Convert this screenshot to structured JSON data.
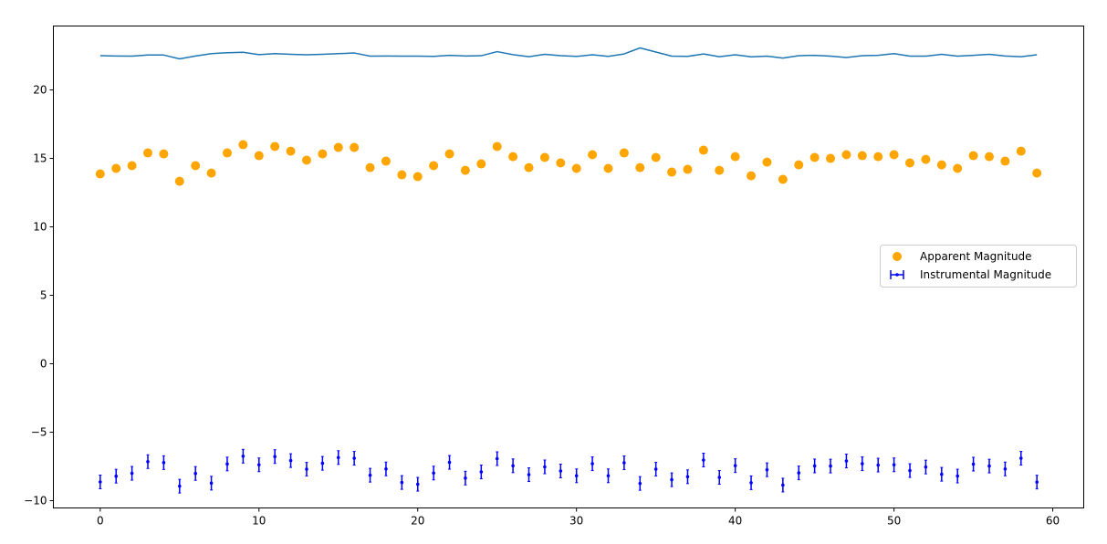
{
  "chart_data": {
    "type": "scatter",
    "title": "",
    "xlabel": "",
    "ylabel": "",
    "xlim": [
      -2.95,
      61.95
    ],
    "ylim": [
      -10.53,
      24.67
    ],
    "xticks": [
      0,
      10,
      20,
      30,
      40,
      50,
      60
    ],
    "yticks": [
      -10,
      -5,
      0,
      5,
      10,
      15,
      20
    ],
    "xtick_labels": [
      "0",
      "10",
      "20",
      "30",
      "40",
      "50",
      "60"
    ],
    "ytick_labels": [
      "−10",
      "−5",
      "0",
      "5",
      "10",
      "15",
      "20"
    ],
    "grid": false,
    "legend_placement": "center-right",
    "series": [
      {
        "kind": "line",
        "color": "#1f77b4",
        "values": [
          22.5,
          22.48,
          22.47,
          22.55,
          22.55,
          22.27,
          22.48,
          22.65,
          22.72,
          22.75,
          22.58,
          22.65,
          22.6,
          22.57,
          22.6,
          22.65,
          22.7,
          22.47,
          22.48,
          22.47,
          22.47,
          22.45,
          22.53,
          22.48,
          22.5,
          22.8,
          22.58,
          22.43,
          22.6,
          22.5,
          22.45,
          22.57,
          22.45,
          22.63,
          23.07,
          22.77,
          22.47,
          22.45,
          22.63,
          22.43,
          22.57,
          22.42,
          22.47,
          22.33,
          22.5,
          22.53,
          22.47,
          22.37,
          22.5,
          22.53,
          22.65,
          22.47,
          22.47,
          22.6,
          22.47,
          22.53,
          22.6,
          22.48,
          22.43,
          22.57
        ]
      },
      {
        "kind": "scatter",
        "name": "Apparent Magnitude",
        "color": "#ffa500",
        "values": [
          13.87,
          14.27,
          14.47,
          15.4,
          15.33,
          13.33,
          14.47,
          13.93,
          15.4,
          16.0,
          15.2,
          15.87,
          15.53,
          14.87,
          15.33,
          15.8,
          15.8,
          14.33,
          14.8,
          13.8,
          13.67,
          14.47,
          15.33,
          14.13,
          14.6,
          15.87,
          15.13,
          14.33,
          15.07,
          14.67,
          14.27,
          15.27,
          14.27,
          15.4,
          14.33,
          15.07,
          14.0,
          14.2,
          15.6,
          14.13,
          15.13,
          13.73,
          14.73,
          13.47,
          14.53,
          15.07,
          15.0,
          15.27,
          15.2,
          15.13,
          15.27,
          14.67,
          14.93,
          14.53,
          14.27,
          15.2,
          15.13,
          14.8,
          15.53,
          13.93
        ]
      },
      {
        "kind": "errorbar",
        "name": "Instrumental Magnitude",
        "color": "#0000ff",
        "error": 0.5,
        "values": [
          -8.63,
          -8.21,
          -8.0,
          -7.15,
          -7.22,
          -8.94,
          -8.01,
          -8.72,
          -7.32,
          -6.75,
          -7.38,
          -6.78,
          -7.07,
          -7.7,
          -7.27,
          -6.85,
          -6.9,
          -8.14,
          -7.68,
          -8.67,
          -8.8,
          -7.98,
          -7.2,
          -8.35,
          -7.9,
          -6.93,
          -7.45,
          -8.1,
          -7.53,
          -7.83,
          -8.18,
          -7.3,
          -8.18,
          -7.23,
          -8.74,
          -7.7,
          -8.47,
          -8.25,
          -7.03,
          -8.3,
          -7.44,
          -8.69,
          -7.74,
          -8.86,
          -7.97,
          -7.46,
          -7.47,
          -7.1,
          -7.3,
          -7.4,
          -7.38,
          -7.8,
          -7.54,
          -8.07,
          -8.2,
          -7.33,
          -7.47,
          -7.68,
          -6.9,
          -8.64
        ]
      }
    ]
  }
}
